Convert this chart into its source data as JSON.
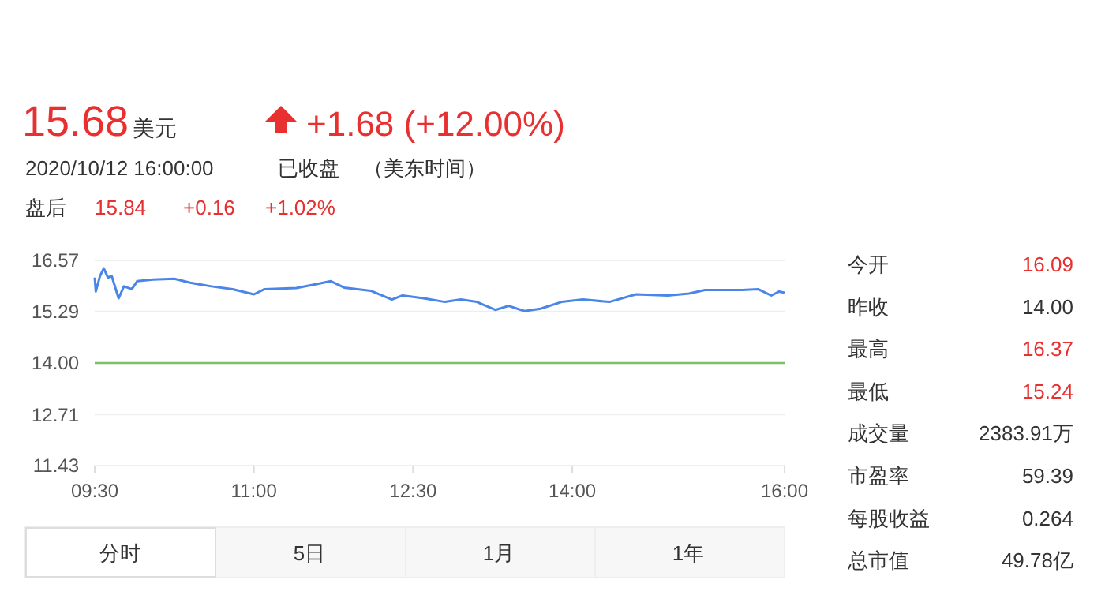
{
  "chart_data": {
    "type": "line",
    "x": [
      9.5,
      9.51,
      9.55,
      9.585,
      9.625,
      9.66,
      9.725,
      9.775,
      9.85,
      9.9,
      10.05,
      10.25,
      10.4,
      10.6,
      10.8,
      11.0,
      11.1,
      11.4,
      11.6,
      11.725,
      11.85,
      12.1,
      12.3,
      12.4,
      12.6,
      12.8,
      12.95,
      13.1,
      13.275,
      13.4,
      13.55,
      13.7,
      13.9,
      14.1,
      14.35,
      14.6,
      14.9,
      15.1,
      15.25,
      15.6,
      15.75,
      15.875,
      15.95,
      16.0
    ],
    "series": [
      {
        "color": "#4a86e8",
        "values": [
          16.14,
          15.79,
          16.18,
          16.37,
          16.14,
          16.18,
          15.62,
          15.92,
          15.85,
          16.05,
          16.09,
          16.11,
          16.01,
          15.92,
          15.85,
          15.72,
          15.85,
          15.88,
          15.98,
          16.05,
          15.89,
          15.81,
          15.59,
          15.69,
          15.62,
          15.53,
          15.59,
          15.53,
          15.33,
          15.43,
          15.3,
          15.36,
          15.53,
          15.59,
          15.53,
          15.72,
          15.69,
          15.74,
          15.83,
          15.83,
          15.85,
          15.69,
          15.79,
          15.76
        ]
      }
    ],
    "xlim": [
      9.5,
      16
    ],
    "xticks": [
      {
        "value": 9.5,
        "label": "09:30"
      },
      {
        "value": 11,
        "label": "11:00"
      },
      {
        "value": 12.5,
        "label": "12:30"
      },
      {
        "value": 14,
        "label": "14:00"
      },
      {
        "value": 16,
        "label": "16:00"
      }
    ],
    "ylim": [
      11.43,
      16.57
    ],
    "yticks": [
      11.43,
      12.71,
      {
        "value": 14,
        "label": "14.00"
      },
      15.29,
      16.57
    ],
    "ref_lines": [
      {
        "axis": "y",
        "value": 14.0,
        "color": "#7cc06a"
      }
    ],
    "grid": "y",
    "marker": "none",
    "line_style": "solid",
    "annotations": [
      "15.68",
      "美元",
      "+1.68 (+12.00%)",
      "2020/10/12 16:00:00",
      "已收盘",
      "（美东时间）",
      "盘后",
      "15.84",
      "+0.16",
      "+1.02%",
      "今开",
      "16.09",
      "昨收",
      "14.00",
      "最高",
      "16.37",
      "最低",
      "15.24",
      "成交量",
      "2383.91万",
      "市盈率",
      "59.39",
      "每股收益",
      "0.264",
      "总市值",
      "49.78亿",
      "分时",
      "5日",
      "1月",
      "1年"
    ]
  }
}
